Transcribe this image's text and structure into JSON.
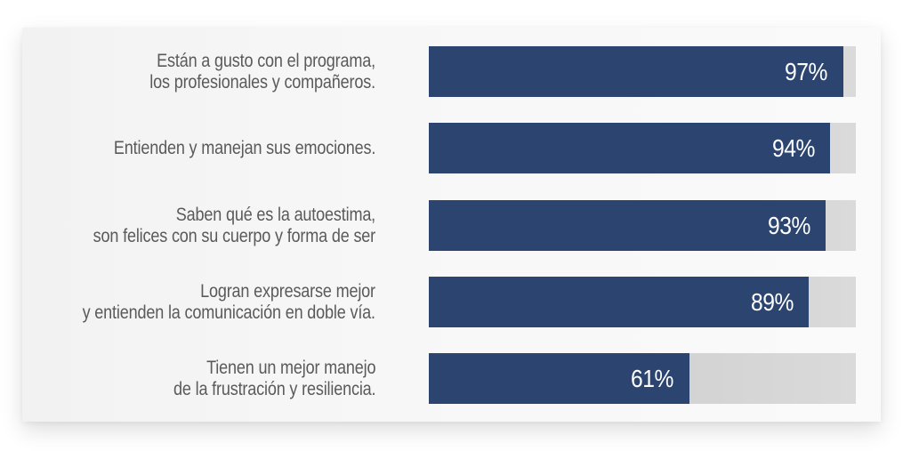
{
  "chart_data": {
    "type": "bar",
    "orientation": "horizontal",
    "title": "",
    "xlabel": "",
    "ylabel": "",
    "xlim": [
      0,
      100
    ],
    "grid": false,
    "legend": null,
    "categories": [
      "Están a gusto con el programa,\nlos profesionales y compañeros.",
      "Entienden y manejan sus emociones.",
      "Saben qué es la autoestima,\nson felices con su cuerpo y forma de ser",
      "Logran expresarse mejor\ny entienden la comunicación en doble vía.",
      "Tienen un mejor manejo\nde la frustración y resiliencia."
    ],
    "values": [
      97,
      94,
      93,
      89,
      61
    ],
    "value_labels": [
      "97%",
      "94%",
      "93%",
      "89%",
      "61%"
    ],
    "colors": {
      "fill": "#2b4470",
      "track": "#d6d6d6",
      "label_text": "#5a5a5a",
      "value_text": "#ffffff"
    }
  },
  "rows": [
    {
      "label": "Están a gusto con el programa,\nlos profesionales y compañeros.",
      "value": 97,
      "value_label": "97%"
    },
    {
      "label": "Entienden y manejan sus emociones.",
      "value": 94,
      "value_label": "94%"
    },
    {
      "label": "Saben qué es la autoestima,\nson felices con su cuerpo y forma de ser",
      "value": 93,
      "value_label": "93%"
    },
    {
      "label": "Logran expresarse mejor\ny entienden la comunicación en doble vía.",
      "value": 89,
      "value_label": "89%"
    },
    {
      "label": "Tienen un mejor manejo\nde la frustración y resiliencia.",
      "value": 61,
      "value_label": "61%"
    }
  ]
}
